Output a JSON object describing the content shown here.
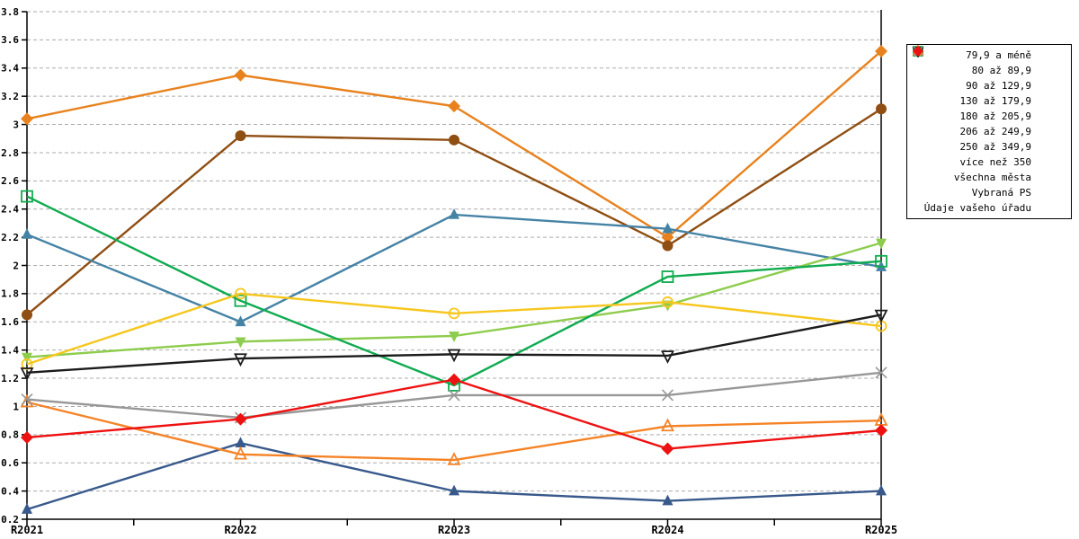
{
  "chart_data": {
    "type": "line",
    "title": "",
    "xlabel": "",
    "ylabel": "",
    "categories": [
      "R2021",
      "R2022",
      "R2023",
      "R2024",
      "R2025"
    ],
    "series": [
      {
        "name": "79,9 a méně",
        "color": "#E8821E",
        "marker": "diamond",
        "style": "filled",
        "values": [
          3.04,
          3.35,
          3.13,
          2.2,
          3.52
        ]
      },
      {
        "name": "80 až 89,9",
        "color": "#8F4E12",
        "marker": "circle",
        "style": "filled",
        "values": [
          1.65,
          2.92,
          2.89,
          2.14,
          3.11
        ]
      },
      {
        "name": "90 až 129,9",
        "color": "#4583A5",
        "marker": "triangle-up",
        "style": "filled",
        "values": [
          2.22,
          1.6,
          2.36,
          2.26,
          1.99
        ]
      },
      {
        "name": "130 až 179,9",
        "color": "#38598B",
        "marker": "triangle-up",
        "style": "filled",
        "values": [
          0.27,
          0.74,
          0.4,
          0.33,
          0.4
        ]
      },
      {
        "name": "180 až 205,9",
        "color": "#8DCC4C",
        "marker": "triangle-down",
        "style": "filled",
        "values": [
          1.35,
          1.46,
          1.5,
          1.72,
          2.16
        ]
      },
      {
        "name": "206 až 249,9",
        "color": "#10AB50",
        "marker": "square",
        "style": "open",
        "values": [
          2.49,
          1.75,
          1.15,
          1.92,
          2.03
        ]
      },
      {
        "name": "250 až 349,9",
        "color": "#F6C71F",
        "marker": "circle",
        "style": "open",
        "values": [
          1.3,
          1.8,
          1.66,
          1.74,
          1.57
        ]
      },
      {
        "name": "více než 350",
        "color": "#F58326",
        "marker": "triangle-up",
        "style": "open",
        "values": [
          1.03,
          0.66,
          0.62,
          0.86,
          0.9
        ]
      },
      {
        "name": "všechna města",
        "color": "#1C1C1C",
        "marker": "triangle-down",
        "style": "open",
        "values": [
          1.24,
          1.34,
          1.37,
          1.36,
          1.65
        ]
      },
      {
        "name": "Vybraná PS",
        "color": "#979797",
        "marker": "x",
        "style": "open",
        "values": [
          1.05,
          0.92,
          1.08,
          1.08,
          1.24
        ]
      },
      {
        "name": "Údaje vašeho úřadu",
        "color": "#EE1111",
        "marker": "diamond",
        "style": "filled",
        "values": [
          0.78,
          0.91,
          1.19,
          0.7,
          0.83
        ]
      }
    ],
    "ylim": [
      0.2,
      3.8
    ],
    "y_tick_step": 0.2,
    "y_ticks": [
      "3.8",
      "3.6",
      "3.4",
      "3.2",
      "3",
      "2.8",
      "2.6",
      "2.4",
      "2.2",
      "2",
      "1.8",
      "1.6",
      "1.4",
      "1.2",
      "1",
      "0.8",
      "0.6",
      "0.4",
      "0.2"
    ],
    "grid": "horizontal-dashed",
    "legend_position": "right",
    "colors": {
      "grid": "#ABABAB",
      "axis": "#000000",
      "background": "#FFFFFF"
    }
  }
}
